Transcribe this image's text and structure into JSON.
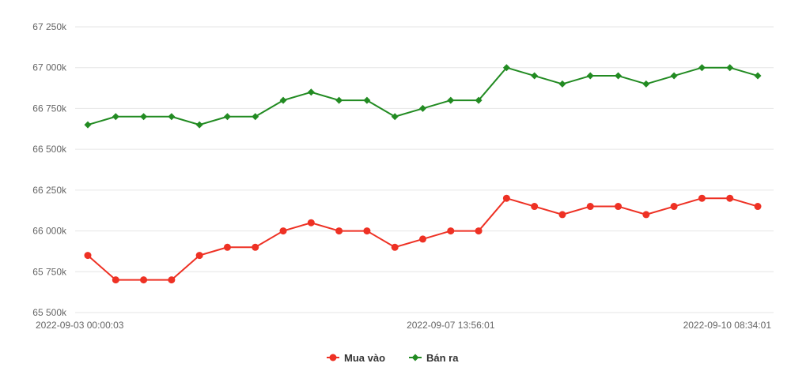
{
  "chart_data": {
    "type": "line",
    "title": "",
    "xlabel": "",
    "ylabel": "",
    "x_tick_labels": [
      "2022-09-03 00:00:03",
      "2022-09-07 13:56:01",
      "2022-09-10 08:34:01"
    ],
    "x_tick_indices": [
      0,
      13,
      24
    ],
    "y_ticks": [
      65500,
      65750,
      66000,
      66250,
      66500,
      66750,
      67000,
      67250
    ],
    "y_tick_labels": [
      "65 500k",
      "65 750k",
      "66 000k",
      "66 250k",
      "66 500k",
      "66 750k",
      "67 000k",
      "67 250k"
    ],
    "ylim": [
      65500,
      67250
    ],
    "grid": true,
    "legend_position": "bottom",
    "series": [
      {
        "name": "Mua vào",
        "color": "#ee3124",
        "marker": "circle",
        "values": [
          65850,
          65700,
          65700,
          65700,
          65850,
          65900,
          65900,
          66000,
          66050,
          66000,
          66000,
          65900,
          65950,
          66000,
          66000,
          66200,
          66150,
          66100,
          66150,
          66150,
          66100,
          66150,
          66200,
          66200,
          66150
        ]
      },
      {
        "name": "Bán ra",
        "color": "#228b22",
        "marker": "diamond",
        "values": [
          66650,
          66700,
          66700,
          66700,
          66650,
          66700,
          66700,
          66800,
          66850,
          66800,
          66800,
          66700,
          66750,
          66800,
          66800,
          67000,
          66950,
          66900,
          66950,
          66950,
          66900,
          66950,
          67000,
          67000,
          66950
        ]
      }
    ]
  }
}
